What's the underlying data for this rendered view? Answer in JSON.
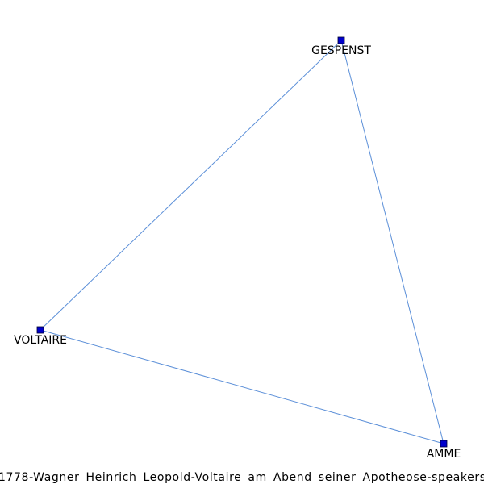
{
  "graph": {
    "caption": "1778-Wagner Heinrich Leopold-Voltaire am Abend seiner Apotheose-speakers",
    "colors": {
      "edge": "#5b8fd8",
      "node": "#0000cc"
    },
    "nodes": [
      {
        "id": "gespenst",
        "label": "GESPENST"
      },
      {
        "id": "voltaire",
        "label": "VOLTAIRE"
      },
      {
        "id": "amme",
        "label": "AMME"
      }
    ],
    "edges": [
      {
        "source": "gespenst",
        "target": "voltaire"
      },
      {
        "source": "gespenst",
        "target": "amme"
      },
      {
        "source": "voltaire",
        "target": "amme"
      }
    ]
  }
}
